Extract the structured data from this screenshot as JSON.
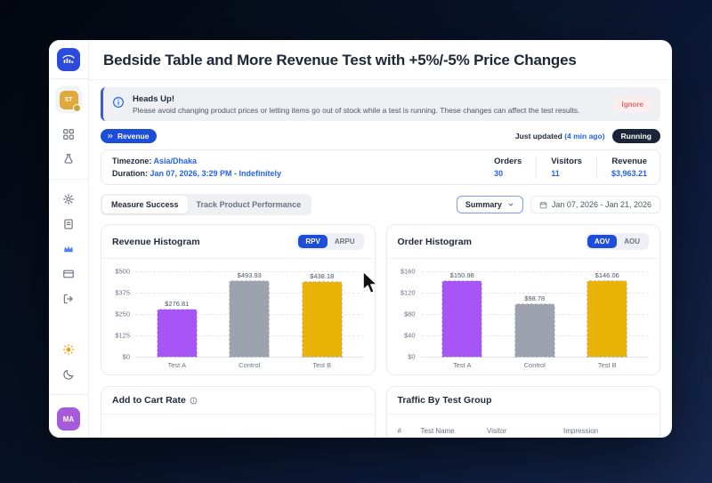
{
  "window_title": "Bedside Table and More Revenue Test with +5%/-5% Price Changes",
  "sidebar": {
    "store_initials": "ST",
    "user_initials": "MA",
    "icons": [
      "dashboard-grid",
      "ab-test-flask",
      "settings-gear",
      "documents",
      "plan-crown",
      "billing-card",
      "logout",
      "light-mode-sun",
      "dark-mode-moon"
    ]
  },
  "banner": {
    "title": "Heads Up!",
    "message": "Please avoid changing product prices or letting items go out of stock while a test is running. These changes can affect the test results.",
    "action": "Ignore"
  },
  "meta": {
    "type_badge": "Revenue",
    "updated_prefix": "Just updated ",
    "updated_time": "(4 min ago)",
    "status": "Running"
  },
  "details": {
    "timezone_label": "Timezone: ",
    "timezone": "Asia/Dhaka",
    "duration_label": "Duration: ",
    "duration": "Jan 07, 2026, 3:29 PM - Indefinitely",
    "stats": [
      {
        "label": "Orders",
        "value": "30"
      },
      {
        "label": "Visitors",
        "value": "11"
      },
      {
        "label": "Revenue",
        "value": "$3,963.21"
      }
    ]
  },
  "tabs": [
    {
      "label": "Measure Success",
      "active": true
    },
    {
      "label": "Track Product Performance",
      "active": false
    }
  ],
  "controls": {
    "summary": "Summary",
    "date_range": "Jan 07, 2026 - Jan 21, 2026"
  },
  "chart_data": [
    {
      "type": "bar",
      "title": "Revenue Histogram",
      "toggle": [
        "RPV",
        "ARPU"
      ],
      "active_toggle": "RPV",
      "categories": [
        "Test A",
        "Control",
        "Test B"
      ],
      "values": [
        276.81,
        493.93,
        438.18
      ],
      "labels": [
        "$276.81",
        "$493.93",
        "$438.18"
      ],
      "yticks": [
        "$500",
        "$375",
        "$250",
        "$125",
        "$0"
      ],
      "ylim": [
        0,
        500
      ],
      "colors": [
        "#a855f7",
        "#9ca3af",
        "#eab308"
      ],
      "legend_position": "none",
      "grid": true
    },
    {
      "type": "bar",
      "title": "Order Histogram",
      "toggle": [
        "AOV",
        "AOU"
      ],
      "active_toggle": "AOV",
      "categories": [
        "Test A",
        "Control",
        "Test B"
      ],
      "values": [
        150.98,
        98.78,
        146.06
      ],
      "labels": [
        "$150.98",
        "$98.78",
        "$146.06"
      ],
      "yticks": [
        "$160",
        "$120",
        "$80",
        "$40",
        "$0"
      ],
      "ylim": [
        0,
        160
      ],
      "colors": [
        "#a855f7",
        "#9ca3af",
        "#eab308"
      ],
      "legend_position": "none",
      "grid": true
    }
  ],
  "cards": [
    {
      "title": "Add to Cart Rate"
    },
    {
      "title": "Traffic By Test Group",
      "table_headers": [
        "#",
        "Test Name",
        "Visitor",
        "Impression"
      ]
    }
  ],
  "colors": {
    "accent_blue": "#1d4ed8",
    "link_blue": "#2563eb",
    "bar_purple": "#a855f7",
    "bar_gray": "#9ca3af",
    "bar_gold": "#eab308",
    "status_running_bg": "#1b2537",
    "store_gold": "#e0a93c",
    "avatar_purple": "#a65bd8"
  }
}
